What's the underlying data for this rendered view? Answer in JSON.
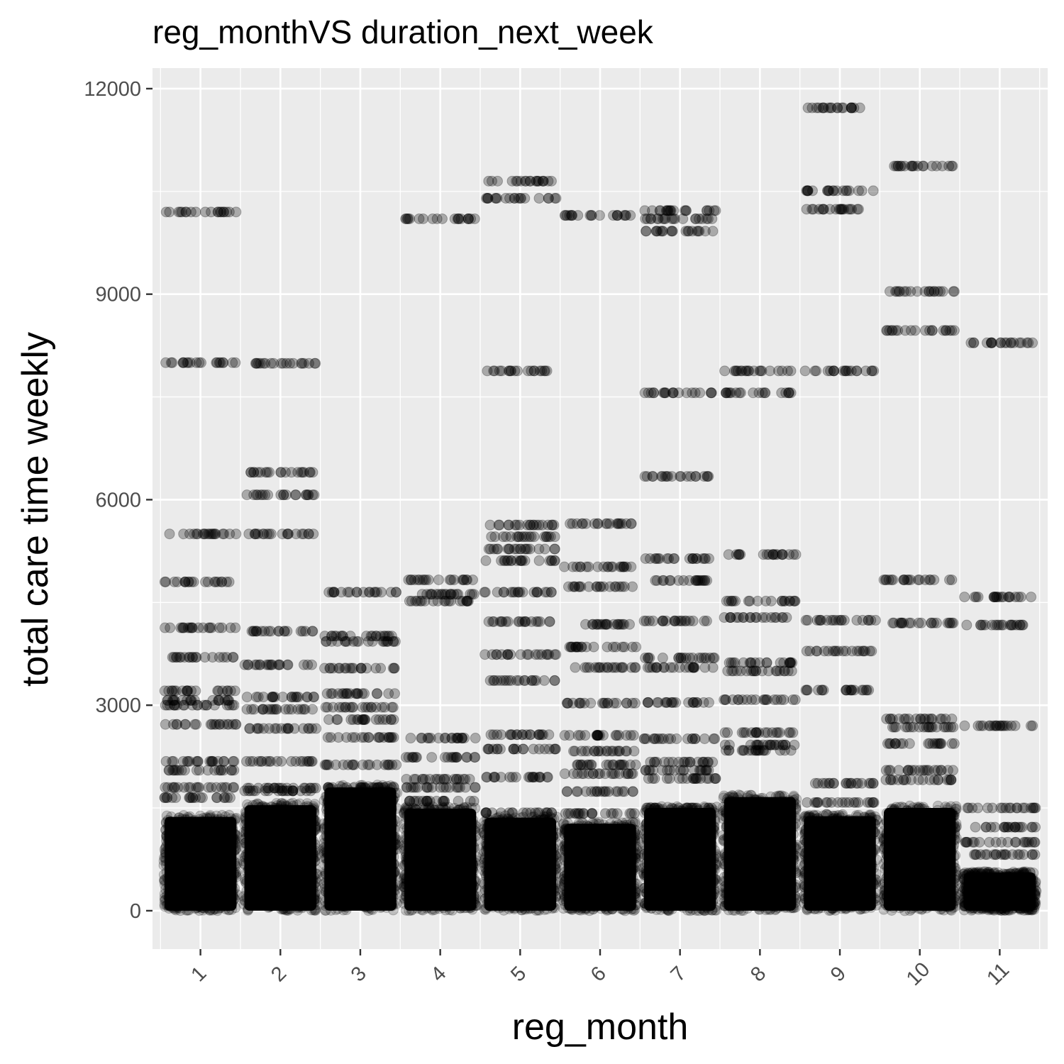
{
  "chart_data": {
    "type": "scatter",
    "title": "reg_monthVS duration_next_week",
    "xlabel": "reg_month",
    "ylabel": "total care time weekly",
    "categories": [
      "1",
      "2",
      "3",
      "4",
      "5",
      "6",
      "7",
      "8",
      "9",
      "10",
      "11"
    ],
    "yticks": [
      0,
      3000,
      6000,
      9000,
      12000
    ],
    "ytick_labels": [
      "0",
      "3000",
      "6000",
      "9000",
      "12000"
    ],
    "ylim": [
      -560,
      12300
    ],
    "grid": true,
    "jitter_width": 0.45,
    "dense_band_top": [
      1370,
      1540,
      1800,
      1490,
      1360,
      1270,
      1500,
      1660,
      1380,
      1500,
      560
    ],
    "levels": [
      [
        10200,
        8000,
        5500,
        4800,
        4130,
        3700,
        3210,
        3070,
        3000,
        2720,
        2180,
        2050,
        1800,
        1650
      ],
      [
        7990,
        6400,
        6070,
        5500,
        4080,
        3590,
        3120,
        2940,
        2660,
        2180,
        1790,
        1750
      ],
      [
        4650,
        4010,
        3930,
        3540,
        3170,
        2970,
        2790,
        2530,
        2130,
        1800,
        1620
      ],
      [
        10100,
        4830,
        4620,
        4520,
        2520,
        2240,
        1920,
        1800,
        1600
      ],
      [
        10650,
        10400,
        7880,
        5630,
        5460,
        5280,
        5110,
        4650,
        4220,
        3740,
        3360,
        2570,
        2360,
        1950,
        1430
      ],
      [
        10150,
        5650,
        5020,
        4730,
        4180,
        3850,
        3550,
        3030,
        2560,
        2330,
        2130,
        2000,
        1740,
        1420
      ],
      [
        10220,
        10100,
        9920,
        7560,
        6340,
        5140,
        4820,
        4230,
        3690,
        3550,
        3040,
        2510,
        2170,
        2050,
        1930,
        1500
      ],
      [
        7880,
        7560,
        5200,
        4520,
        4280,
        3620,
        3500,
        3080,
        2600,
        2420,
        2340
      ],
      [
        11720,
        10510,
        10240,
        7880,
        4240,
        3790,
        3220,
        1860,
        1580
      ],
      [
        10870,
        9040,
        8470,
        4830,
        4200,
        2800,
        2680,
        2440,
        2050,
        1910
      ],
      [
        8290,
        4580,
        4170,
        2700,
        1500,
        1220,
        1000,
        820
      ]
    ],
    "points_per_level": 20,
    "band_points": 700,
    "point_alpha": 0.2
  }
}
